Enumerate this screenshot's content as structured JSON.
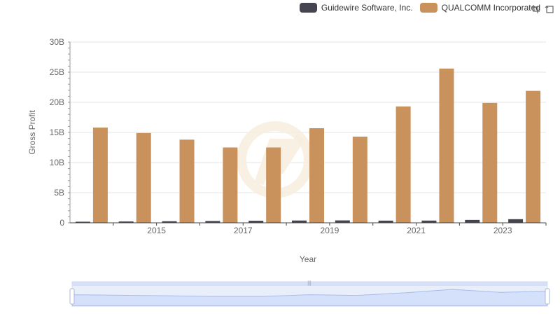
{
  "legend": [
    {
      "name": "Guidewire Software, Inc.",
      "color": "#454552"
    },
    {
      "name": "QUALCOMM Incorporated",
      "color": "#c9915c"
    }
  ],
  "toolbox": {
    "icons": [
      "zoom-icon",
      "restore-icon"
    ]
  },
  "chart_data": {
    "type": "bar",
    "xlabel": "Year",
    "ylabel": "Gross Profit",
    "ylim": [
      0,
      30000000000
    ],
    "yticks": [
      "0",
      "5B",
      "10B",
      "15B",
      "20B",
      "25B",
      "30B"
    ],
    "ytick_values": [
      0,
      5000000000,
      10000000000,
      15000000000,
      20000000000,
      25000000000,
      30000000000
    ],
    "categories": [
      2014,
      2015,
      2016,
      2017,
      2018,
      2019,
      2020,
      2021,
      2022,
      2023,
      2024
    ],
    "xtick_labels_shown": [
      2015,
      2017,
      2019,
      2021,
      2023
    ],
    "grid": true,
    "legend_position": "top-right",
    "series": [
      {
        "name": "Guidewire Software, Inc.",
        "color": "#454552",
        "values": [
          180000000,
          220000000,
          260000000,
          300000000,
          340000000,
          380000000,
          400000000,
          360000000,
          370000000,
          480000000,
          600000000
        ]
      },
      {
        "name": "QUALCOMM Incorporated",
        "color": "#c9915c",
        "values": [
          15800000000,
          14900000000,
          13800000000,
          12500000000,
          12500000000,
          15700000000,
          14300000000,
          19300000000,
          25600000000,
          19900000000,
          21900000000
        ]
      }
    ]
  }
}
